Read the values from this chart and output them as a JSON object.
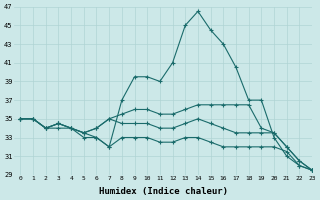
{
  "xlabel": "Humidex (Indice chaleur)",
  "xlim": [
    -0.5,
    23
  ],
  "ylim": [
    29,
    47
  ],
  "yticks": [
    29,
    31,
    33,
    35,
    37,
    39,
    41,
    43,
    45,
    47
  ],
  "xticks": [
    0,
    1,
    2,
    3,
    4,
    5,
    6,
    7,
    8,
    9,
    10,
    11,
    12,
    13,
    14,
    15,
    16,
    17,
    18,
    19,
    20,
    21,
    22,
    23
  ],
  "background_color": "#cce8e8",
  "line_color": "#1a6b6b",
  "grid_color": "#b0d4d4",
  "series": [
    [
      35,
      35,
      34,
      34,
      34,
      33,
      33,
      32,
      37,
      39.5,
      39.5,
      39,
      41,
      45,
      46.5,
      44.5,
      43,
      40.5,
      37,
      37,
      33,
      31,
      30,
      29.5
    ],
    [
      35,
      35,
      34,
      34.5,
      34,
      33.5,
      34,
      35,
      35.5,
      36,
      36,
      35.5,
      35.5,
      36,
      36.5,
      36.5,
      36.5,
      36.5,
      36.5,
      34,
      33.5,
      32,
      30.5,
      29.5
    ],
    [
      35,
      35,
      34,
      34.5,
      34,
      33.5,
      34,
      35,
      34.5,
      34.5,
      34.5,
      34,
      34,
      34.5,
      35,
      34.5,
      34,
      33.5,
      33.5,
      33.5,
      33.5,
      32,
      30.5,
      29.5
    ],
    [
      35,
      35,
      34,
      34.5,
      34,
      33.5,
      33,
      32,
      33,
      33,
      33,
      32.5,
      32.5,
      33,
      33,
      32.5,
      32,
      32,
      32,
      32,
      32,
      31.5,
      30,
      29.5
    ]
  ]
}
